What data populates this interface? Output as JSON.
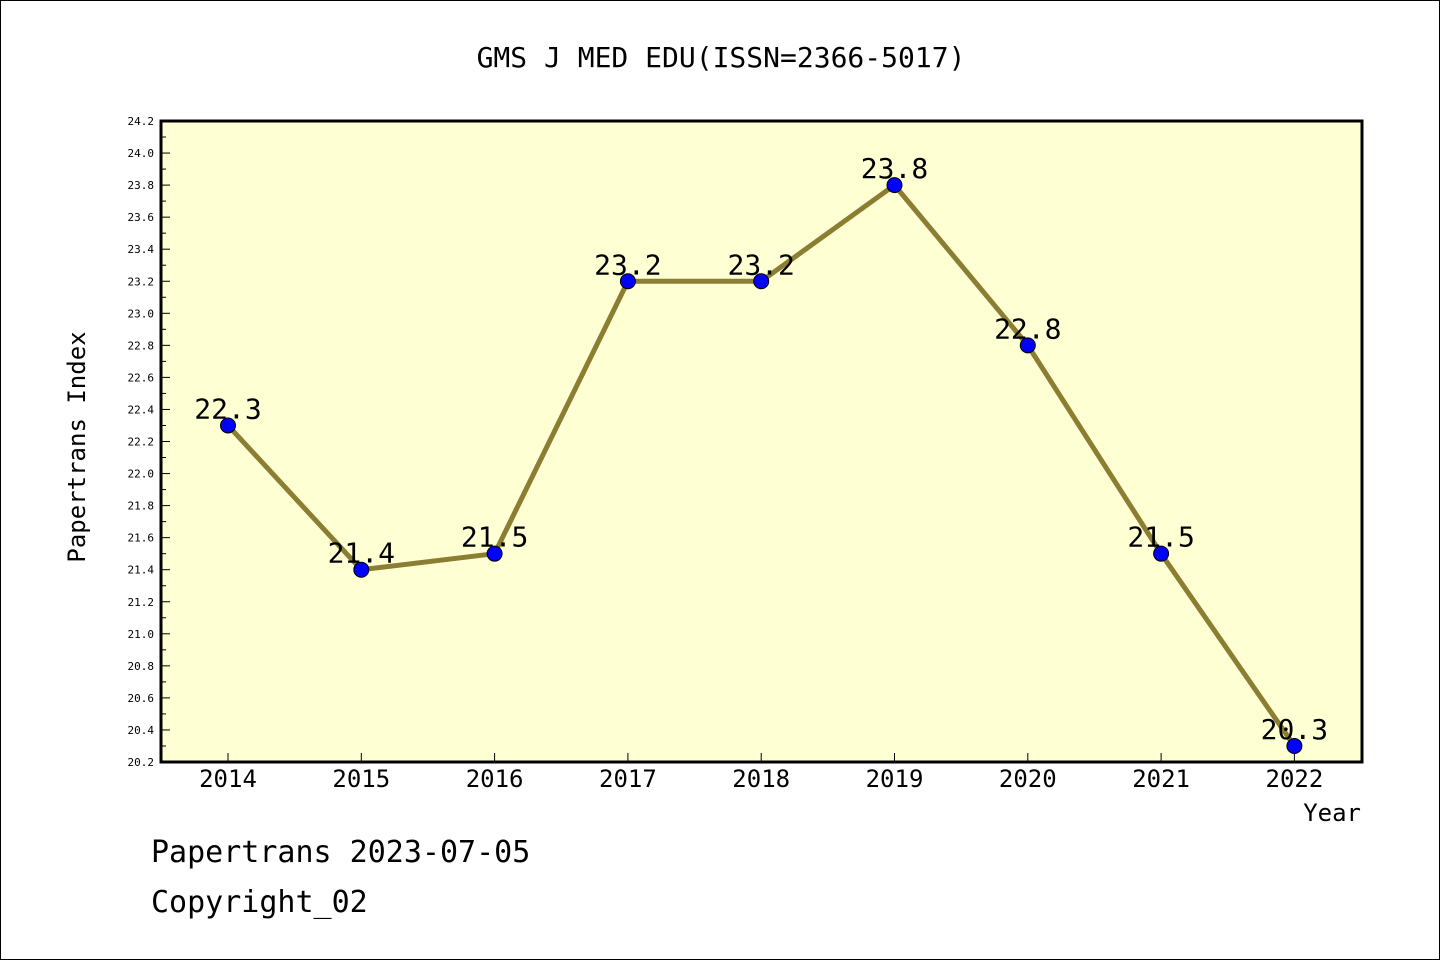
{
  "chart_data": {
    "type": "line",
    "title": "GMS J MED EDU(ISSN=2366-5017)",
    "xlabel": "Year",
    "ylabel": "Papertrans Index",
    "categories": [
      "2014",
      "2015",
      "2016",
      "2017",
      "2018",
      "2019",
      "2020",
      "2021",
      "2022"
    ],
    "series": [
      {
        "values": [
          22.3,
          21.4,
          21.5,
          23.2,
          23.2,
          23.8,
          22.8,
          21.5,
          20.3
        ]
      }
    ],
    "data_labels": [
      "22.3",
      "21.4",
      "21.5",
      "23.2",
      "23.2",
      "23.8",
      "22.8",
      "21.5",
      "20.3"
    ],
    "ylim": [
      20.2,
      24.2
    ],
    "yticks": [
      "20.2",
      "20.4",
      "20.6",
      "20.8",
      "21.0",
      "21.2",
      "21.4",
      "21.6",
      "21.8",
      "22.0",
      "22.2",
      "22.4",
      "22.6",
      "22.8",
      "23.0",
      "23.2",
      "23.4",
      "23.6",
      "23.8",
      "24.0",
      "24.2"
    ],
    "grid": false,
    "legend": "none",
    "colors": {
      "plot_background": "#ffffd4",
      "line": "#8b7d32",
      "marker": "#0000ff",
      "axes": "#000000"
    }
  },
  "footer": {
    "line1": "Papertrans 2023-07-05",
    "line2": "Copyright_02"
  }
}
